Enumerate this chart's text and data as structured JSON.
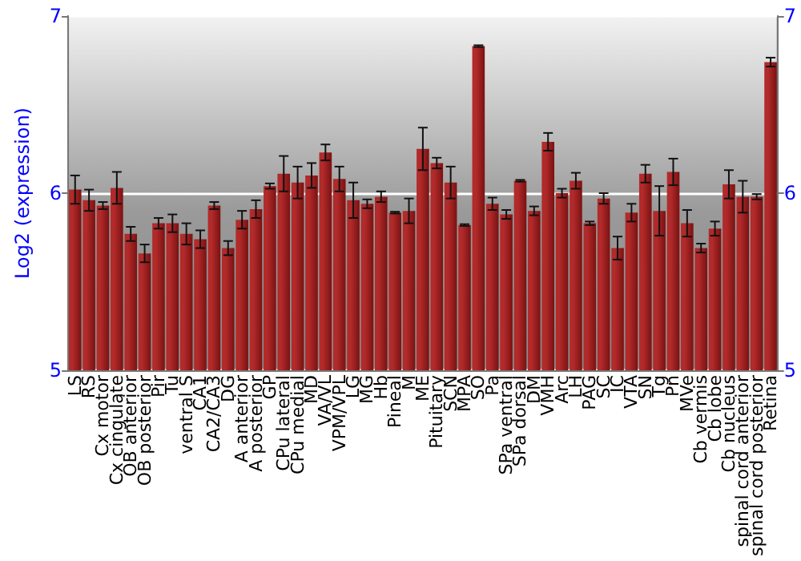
{
  "chart_data": {
    "type": "bar",
    "ylabel": "Log2 (expression)",
    "categories": [
      "LS",
      "RS",
      "Cx motor",
      "Cx cingulate",
      "OB anterior",
      "OB posterior",
      "Pir",
      "Tu",
      "ventral S",
      "CA1",
      "CA2/CA3",
      "DG",
      "A anterior",
      "A posterior",
      "GP",
      "CPu lateral",
      "CPu medial",
      "MD",
      "VA/VL",
      "VPM/VPL",
      "LG",
      "MG",
      "Hb",
      "Pineal",
      "M",
      "ME",
      "Pituitary",
      "SCN",
      "MPA",
      "SO",
      "Pa",
      "SPa ventral",
      "SPa dorsal",
      "DM",
      "VMH",
      "Arc",
      "LH",
      "PAG",
      "SC",
      "IC",
      "VTA",
      "SN",
      "Tg",
      "Pn",
      "MVe",
      "Cb vermis",
      "Cb lobe",
      "Cb nucleus",
      "spinal cord anterior",
      "spinal cord posterior",
      "Retina"
    ],
    "values": [
      6.02,
      5.96,
      5.93,
      6.03,
      5.77,
      5.66,
      5.83,
      5.83,
      5.77,
      5.74,
      5.93,
      5.69,
      5.85,
      5.91,
      6.04,
      6.11,
      6.06,
      6.1,
      6.23,
      6.08,
      5.96,
      5.94,
      5.98,
      5.89,
      5.9,
      6.25,
      6.17,
      6.06,
      5.82,
      6.83,
      5.94,
      5.88,
      6.07,
      5.9,
      6.29,
      6.0,
      6.07,
      5.83,
      5.97,
      5.69,
      5.89,
      6.11,
      5.9,
      6.12,
      5.83,
      5.69,
      5.8,
      6.05,
      5.98,
      5.98,
      6.74
    ],
    "errors": [
      0.08,
      0.06,
      0.02,
      0.09,
      0.04,
      0.05,
      0.03,
      0.05,
      0.06,
      0.05,
      0.02,
      0.04,
      0.05,
      0.05,
      0.015,
      0.1,
      0.09,
      0.07,
      0.045,
      0.07,
      0.1,
      0.025,
      0.03,
      0.005,
      0.07,
      0.12,
      0.03,
      0.09,
      0.005,
      0.005,
      0.035,
      0.025,
      0.005,
      0.025,
      0.05,
      0.025,
      0.045,
      0.01,
      0.03,
      0.065,
      0.05,
      0.05,
      0.14,
      0.075,
      0.075,
      0.025,
      0.04,
      0.08,
      0.09,
      0.015,
      0.025
    ],
    "color": "#b22a2a",
    "ylim": [
      5,
      7
    ],
    "yticks": [
      5,
      6,
      7
    ],
    "y2lim": [
      5,
      7
    ],
    "y2ticks": [
      5,
      6,
      7
    ],
    "grid": "y",
    "legend": false
  }
}
